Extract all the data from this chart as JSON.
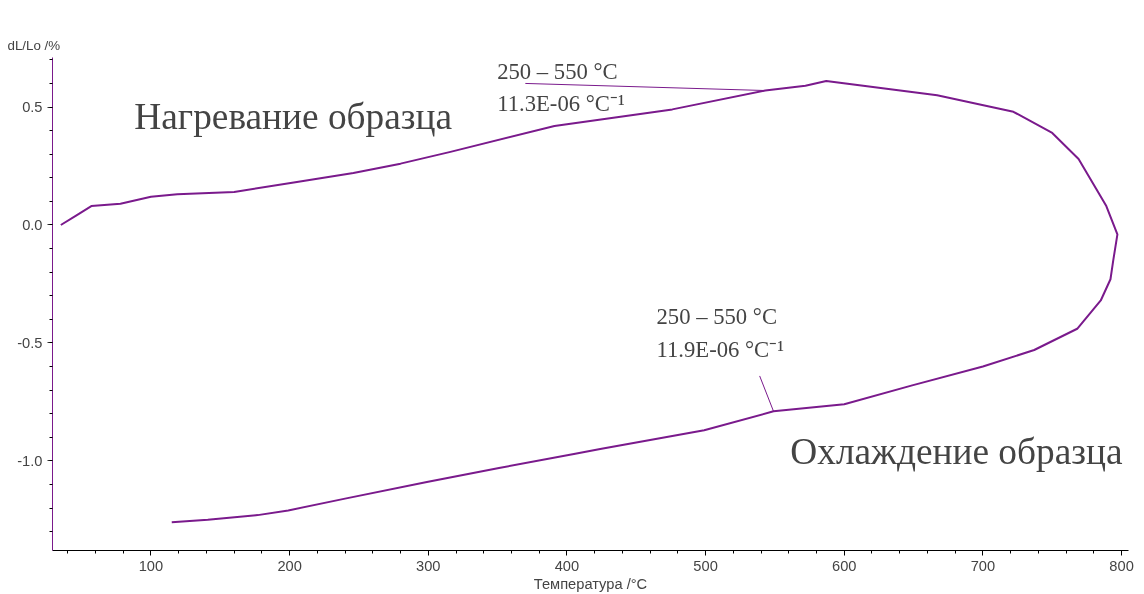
{
  "chart_data": {
    "type": "line",
    "xlabel": "Температура /°C",
    "ylabel": "dL/Lo /%",
    "xlim": [
      29,
      805
    ],
    "ylim": [
      -1.38,
      0.71
    ],
    "xticks": [
      100,
      200,
      300,
      400,
      500,
      600,
      700,
      800
    ],
    "yticks": [
      {
        "value": -1,
        "label": "-1.0"
      },
      -0.5,
      {
        "value": 0,
        "label": "0.0"
      },
      0.5
    ],
    "grid": false,
    "marker": "none",
    "line_style": "solid",
    "series": [
      {
        "color": "#7a1a8c",
        "x": [
          35,
          46,
          57,
          78,
          100,
          119,
          160,
          203,
          246,
          280,
          316,
          391,
          476,
          543,
          572,
          587,
          667,
          722,
          750,
          769,
          789,
          797,
          794,
          792,
          785,
          768,
          737,
          700,
          649,
          600,
          549,
          499,
          424,
          406,
          351,
          299,
          240,
          199,
          177,
          141,
          115
        ],
        "values": [
          0.0,
          0.04,
          0.08,
          0.09,
          0.12,
          0.13,
          0.14,
          0.18,
          0.22,
          0.26,
          0.31,
          0.42,
          0.49,
          0.57,
          0.59,
          0.61,
          0.55,
          0.48,
          0.39,
          0.28,
          0.08,
          -0.04,
          -0.15,
          -0.23,
          -0.32,
          -0.44,
          -0.53,
          -0.6,
          -0.68,
          -0.76,
          -0.79,
          -0.87,
          -0.95,
          -0.97,
          -1.03,
          -1.09,
          -1.16,
          -1.21,
          -1.23,
          -1.25,
          -1.26
        ]
      }
    ],
    "annotations": [
      {
        "text": "250 – 550 °C\n11.3E-06 °C⁻¹",
        "x": 543,
        "y": 0.57
      },
      {
        "text": "250 – 550 °C\n11.9E-06 °C⁻¹",
        "x": 549,
        "y": -0.79
      },
      "Нагревание образца",
      "Охлаждение образца"
    ]
  }
}
